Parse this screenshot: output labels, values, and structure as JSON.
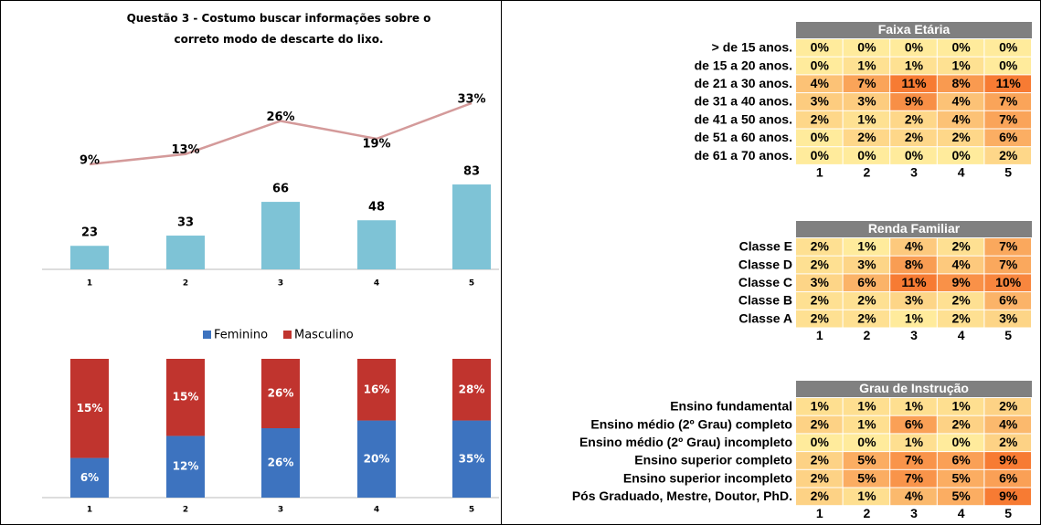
{
  "chart_data": [
    {
      "type": "bar_line",
      "title": "Questão 3 - Costumo buscar informações sobre o correto modo de descarte do lixo.",
      "categories": [
        "1",
        "2",
        "3",
        "4",
        "5"
      ],
      "series": [
        {
          "type": "bar",
          "color": "#7ec3d6",
          "values": [
            23,
            33,
            66,
            48,
            83
          ]
        },
        {
          "type": "line",
          "color": "#d49a9a",
          "values": [
            9,
            13,
            26,
            19,
            33
          ],
          "value_labels": [
            "9%",
            "13%",
            "26%",
            "19%",
            "33%"
          ]
        }
      ]
    },
    {
      "type": "stacked_percent_bar",
      "categories": [
        "1",
        "2",
        "3",
        "4",
        "5"
      ],
      "legend": "top",
      "series": [
        {
          "name": "Feminino",
          "color": "#3d73bf",
          "values": [
            6,
            12,
            26,
            20,
            35
          ],
          "value_labels": [
            "6%",
            "12%",
            "26%",
            "20%",
            "35%"
          ]
        },
        {
          "name": "Masculino",
          "color": "#c0342e",
          "values": [
            15,
            15,
            26,
            16,
            28
          ],
          "value_labels": [
            "15%",
            "15%",
            "26%",
            "16%",
            "28%"
          ]
        }
      ]
    },
    {
      "type": "heatmap",
      "title": "Faixa Etária",
      "color_min": "#ffeb9c",
      "color_max": "#f77b33",
      "rows": [
        "> de 15 anos.",
        "de 15 a 20 anos.",
        "de 21 a 30 anos.",
        "de 31 a 40 anos.",
        "de 41 a 50 anos.",
        "de 51 a 60 anos.",
        "de 61 a 70 anos."
      ],
      "columns": [
        "1",
        "2",
        "3",
        "4",
        "5"
      ],
      "values": [
        [
          0,
          0,
          0,
          0,
          0
        ],
        [
          0,
          1,
          1,
          1,
          0
        ],
        [
          4,
          7,
          11,
          8,
          11
        ],
        [
          3,
          3,
          9,
          4,
          7
        ],
        [
          2,
          1,
          2,
          4,
          7
        ],
        [
          0,
          2,
          2,
          2,
          6
        ],
        [
          0,
          0,
          0,
          0,
          2
        ]
      ],
      "value_labels": [
        [
          "0%",
          "0%",
          "0%",
          "0%",
          "0%"
        ],
        [
          "0%",
          "1%",
          "1%",
          "1%",
          "0%"
        ],
        [
          "4%",
          "7%",
          "11%",
          "8%",
          "11%"
        ],
        [
          "3%",
          "3%",
          "9%",
          "4%",
          "7%"
        ],
        [
          "2%",
          "1%",
          "2%",
          "4%",
          "7%"
        ],
        [
          "0%",
          "2%",
          "2%",
          "2%",
          "6%"
        ],
        [
          "0%",
          "0%",
          "0%",
          "0%",
          "2%"
        ]
      ]
    },
    {
      "type": "heatmap",
      "title": "Renda Familiar",
      "color_min": "#ffeb9c",
      "color_max": "#f77b33",
      "rows": [
        "Classe E",
        "Classe D",
        "Classe C",
        "Classe B",
        "Classe A"
      ],
      "columns": [
        "1",
        "2",
        "3",
        "4",
        "5"
      ],
      "values": [
        [
          2,
          1,
          4,
          2,
          7
        ],
        [
          2,
          3,
          8,
          4,
          7
        ],
        [
          3,
          6,
          11,
          9,
          10
        ],
        [
          2,
          2,
          3,
          2,
          6
        ],
        [
          2,
          2,
          1,
          2,
          3
        ]
      ],
      "value_labels": [
        [
          "2%",
          "1%",
          "4%",
          "2%",
          "7%"
        ],
        [
          "2%",
          "3%",
          "8%",
          "4%",
          "7%"
        ],
        [
          "3%",
          "6%",
          "11%",
          "9%",
          "10%"
        ],
        [
          "2%",
          "2%",
          "3%",
          "2%",
          "6%"
        ],
        [
          "2%",
          "2%",
          "1%",
          "2%",
          "3%"
        ]
      ]
    },
    {
      "type": "heatmap",
      "title": "Grau de Instrução",
      "color_min": "#ffeb9c",
      "color_max": "#f77b33",
      "rows": [
        "Ensino fundamental",
        "Ensino médio (2º Grau) completo",
        "Ensino médio (2º Grau) incompleto",
        "Ensino superior completo",
        "Ensino superior incompleto",
        "Pós Graduado, Mestre, Doutor, PhD."
      ],
      "columns": [
        "1",
        "2",
        "3",
        "4",
        "5"
      ],
      "values": [
        [
          1,
          1,
          1,
          1,
          2
        ],
        [
          2,
          1,
          6,
          2,
          4
        ],
        [
          0,
          0,
          1,
          0,
          2
        ],
        [
          2,
          5,
          7,
          6,
          9
        ],
        [
          2,
          5,
          7,
          5,
          6
        ],
        [
          2,
          1,
          4,
          5,
          9
        ]
      ],
      "value_labels": [
        [
          "1%",
          "1%",
          "1%",
          "1%",
          "2%"
        ],
        [
          "2%",
          "1%",
          "6%",
          "2%",
          "4%"
        ],
        [
          "0%",
          "0%",
          "1%",
          "0%",
          "2%"
        ],
        [
          "2%",
          "5%",
          "7%",
          "6%",
          "9%"
        ],
        [
          "2%",
          "5%",
          "7%",
          "5%",
          "6%"
        ],
        [
          "2%",
          "1%",
          "4%",
          "5%",
          "9%"
        ]
      ]
    }
  ]
}
